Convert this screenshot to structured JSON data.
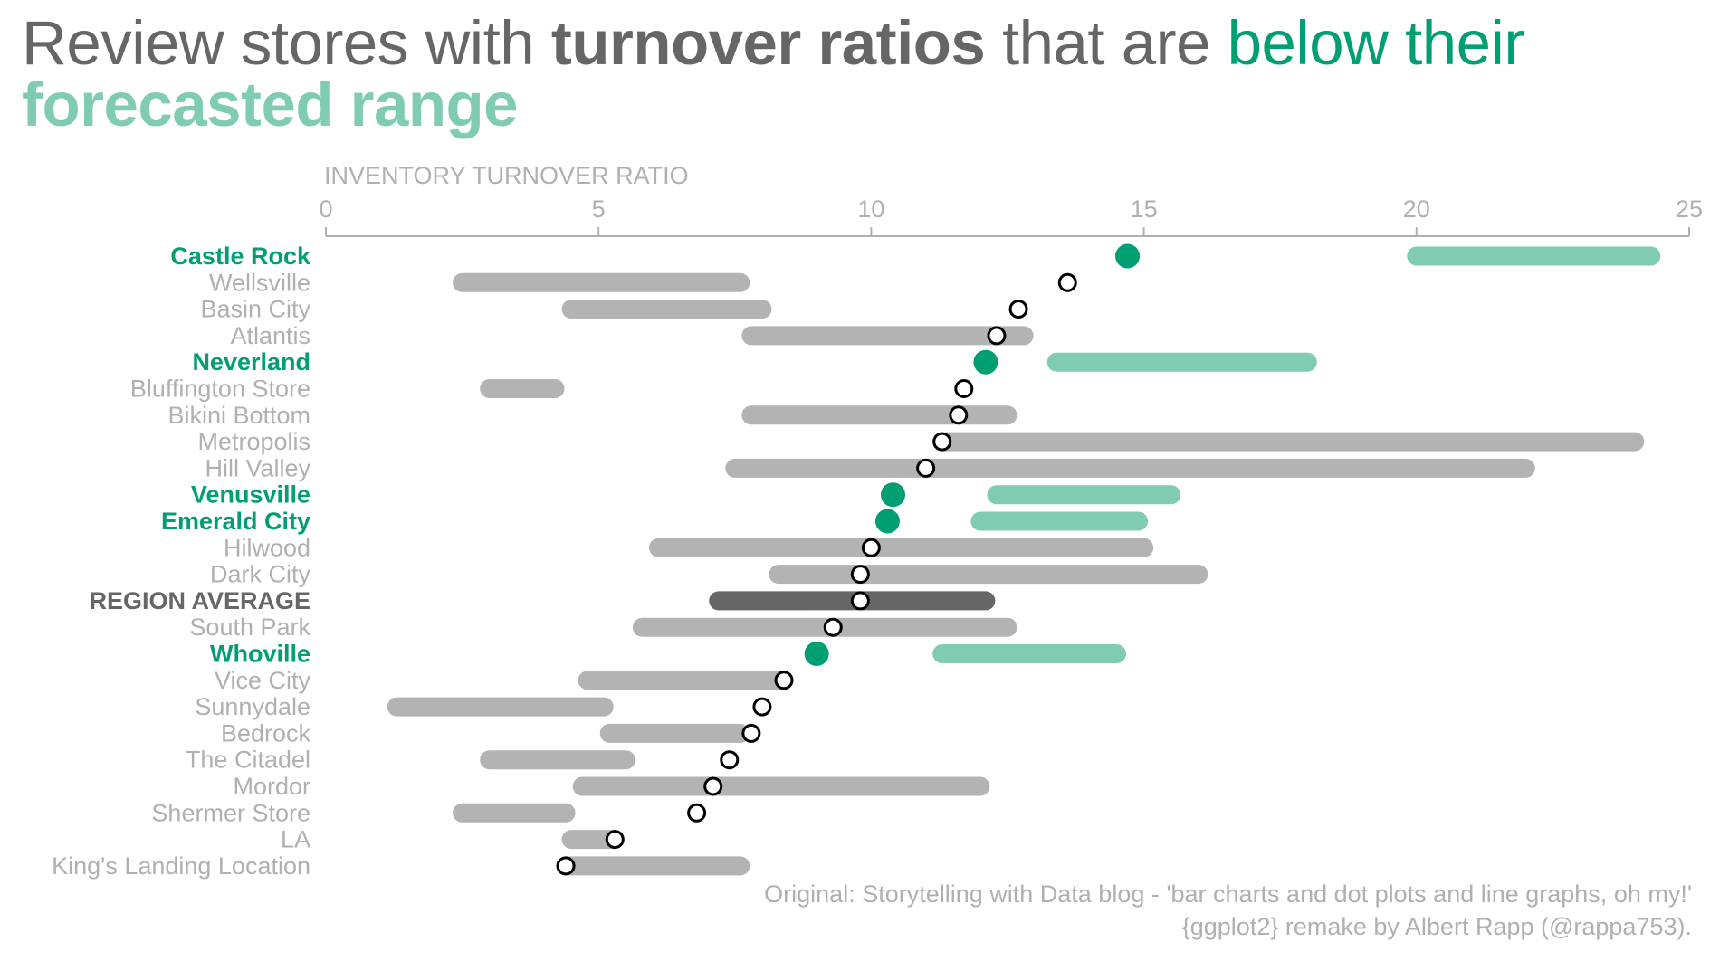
{
  "title": {
    "part1": "Review stores with ",
    "part2": "turnover ratios",
    "part3": " that are ",
    "part4": "below their",
    "part5": "forecasted range"
  },
  "colors": {
    "gray_text": "#b0b0b0",
    "dark_gray": "#666666",
    "green_dark": "#009e73",
    "green_light": "#7fccb3",
    "range_gray": "#b3b3b3",
    "region_range": "#666666",
    "axis_line": "#b0b0b0"
  },
  "caption": {
    "line1": "Original: Storytelling with Data blog - 'bar charts and dot plots and line graphs, oh my!'",
    "line2": "{ggplot2} remake by Albert Rapp (@rappa753)."
  },
  "chart_data": {
    "type": "dot-range",
    "title": "Review stores with turnover ratios that are below their forecasted range",
    "xlabel": "INVENTORY TURNOVER RATIO",
    "x_axis_position": "top",
    "xlim": [
      0,
      25
    ],
    "xticks": [
      0,
      5,
      10,
      15,
      20,
      25
    ],
    "grid": false,
    "rows": [
      {
        "store": "Castle Rock",
        "actual": 14.7,
        "range": [
          20.0,
          24.3
        ],
        "status": "below"
      },
      {
        "store": "Wellsville",
        "actual": 13.6,
        "range": [
          2.5,
          7.6
        ],
        "status": "normal"
      },
      {
        "store": "Basin City",
        "actual": 12.7,
        "range": [
          4.5,
          8.0
        ],
        "status": "normal"
      },
      {
        "store": "Atlantis",
        "actual": 12.3,
        "range": [
          7.8,
          12.8
        ],
        "status": "normal"
      },
      {
        "store": "Neverland",
        "actual": 12.1,
        "range": [
          13.4,
          18.0
        ],
        "status": "below"
      },
      {
        "store": "Bluffington Store",
        "actual": 11.7,
        "range": [
          3.0,
          4.2
        ],
        "status": "normal"
      },
      {
        "store": "Bikini Bottom",
        "actual": 11.6,
        "range": [
          7.8,
          12.5
        ],
        "status": "normal"
      },
      {
        "store": "Metropolis",
        "actual": 11.3,
        "range": [
          11.3,
          24.0
        ],
        "status": "normal"
      },
      {
        "store": "Hill Valley",
        "actual": 11.0,
        "range": [
          7.5,
          22.0
        ],
        "status": "normal"
      },
      {
        "store": "Venusville",
        "actual": 10.4,
        "range": [
          12.3,
          15.5
        ],
        "status": "below"
      },
      {
        "store": "Emerald City",
        "actual": 10.3,
        "range": [
          12.0,
          14.9
        ],
        "status": "below"
      },
      {
        "store": "Hilwood",
        "actual": 10.0,
        "range": [
          6.1,
          15.0
        ],
        "status": "normal"
      },
      {
        "store": "Dark City",
        "actual": 9.8,
        "range": [
          8.3,
          16.0
        ],
        "status": "normal"
      },
      {
        "store": "REGION AVERAGE",
        "actual": 9.8,
        "range": [
          7.2,
          12.1
        ],
        "status": "region"
      },
      {
        "store": "South Park",
        "actual": 9.3,
        "range": [
          5.8,
          12.5
        ],
        "status": "normal"
      },
      {
        "store": "Whoville",
        "actual": 9.0,
        "range": [
          11.3,
          14.5
        ],
        "status": "below"
      },
      {
        "store": "Vice City",
        "actual": 8.4,
        "range": [
          4.8,
          8.4
        ],
        "status": "normal"
      },
      {
        "store": "Sunnydale",
        "actual": 8.0,
        "range": [
          1.3,
          5.1
        ],
        "status": "normal"
      },
      {
        "store": "Bedrock",
        "actual": 7.8,
        "range": [
          5.2,
          7.6
        ],
        "status": "normal"
      },
      {
        "store": "The Citadel",
        "actual": 7.4,
        "range": [
          3.0,
          5.5
        ],
        "status": "normal"
      },
      {
        "store": "Mordor",
        "actual": 7.1,
        "range": [
          4.7,
          12.0
        ],
        "status": "normal"
      },
      {
        "store": "Shermer Store",
        "actual": 6.8,
        "range": [
          2.5,
          4.4
        ],
        "status": "normal"
      },
      {
        "store": "LA",
        "actual": 5.3,
        "range": [
          4.5,
          5.3
        ],
        "status": "normal"
      },
      {
        "store": "King's Landing Location",
        "actual": 4.4,
        "range": [
          4.4,
          7.6
        ],
        "status": "normal"
      }
    ]
  }
}
